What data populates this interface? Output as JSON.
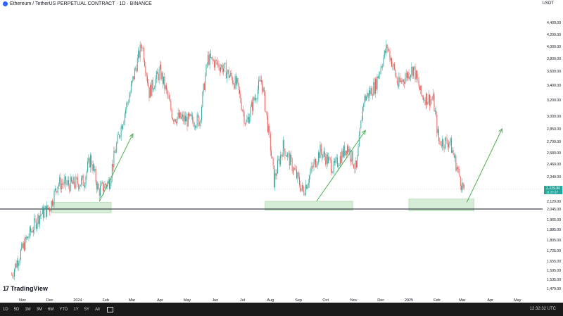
{
  "header": {
    "title": "Ethereum / TetherUS PERPETUAL CONTRACT · 1D · BINANCE",
    "currency": "USDT"
  },
  "logo": {
    "mark": "17",
    "text": "TradingView"
  },
  "bottombar": {
    "timeframes": [
      "1D",
      "5D",
      "1M",
      "3M",
      "6M",
      "YTD",
      "1Y",
      "5Y",
      "All"
    ],
    "clock": "12:32:32 UTC"
  },
  "price_label": {
    "value": "2,229.80",
    "countdown": "11:27:27"
  },
  "colors": {
    "up": "#26a69a",
    "down": "#ef5350",
    "support": "#131722",
    "zone": "#c8e6c9",
    "arrow": "#4caf50"
  },
  "chart_data": {
    "type": "candlestick",
    "title": "Ethereum / TetherUS PERPETUAL CONTRACT · 1D · BINANCE",
    "y_ticks": [
      "4,400.00",
      "4,200.00",
      "4,000.00",
      "3,800.00",
      "3,600.00",
      "3,400.00",
      "3,200.00",
      "3,000.00",
      "2,850.00",
      "2,700.00",
      "2,580.00",
      "2,460.00",
      "2,340.00",
      "2,120.00",
      "2,045.00",
      "1,965.00",
      "1,885.00",
      "1,805.00",
      "1,725.00",
      "1,655.00",
      "1,595.00",
      "1,535.00",
      "1,479.00"
    ],
    "x_ticks": [
      "Nov",
      "Dec",
      "2024",
      "Feb",
      "Mar",
      "Apr",
      "May",
      "Jun",
      "Jul",
      "Aug",
      "Sep",
      "Oct",
      "Nov",
      "Dec",
      "2025",
      "Feb",
      "Mar",
      "Apr",
      "May"
    ],
    "close_path": [
      [
        "2023-10-20",
        1565
      ],
      [
        "2023-11-05",
        1800
      ],
      [
        "2023-11-20",
        2000
      ],
      [
        "2023-12-01",
        2060
      ],
      [
        "2023-12-10",
        2280
      ],
      [
        "2023-12-25",
        2270
      ],
      [
        "2024-01-08",
        2300
      ],
      [
        "2024-01-15",
        2520
      ],
      [
        "2024-01-24",
        2210
      ],
      [
        "2024-02-05",
        2300
      ],
      [
        "2024-02-15",
        2750
      ],
      [
        "2024-02-28",
        3300
      ],
      [
        "2024-03-12",
        4050
      ],
      [
        "2024-03-20",
        3300
      ],
      [
        "2024-04-01",
        3600
      ],
      [
        "2024-04-15",
        3000
      ],
      [
        "2024-05-01",
        2950
      ],
      [
        "2024-05-15",
        2950
      ],
      [
        "2024-05-24",
        3800
      ],
      [
        "2024-06-10",
        3650
      ],
      [
        "2024-06-25",
        3400
      ],
      [
        "2024-07-05",
        2900
      ],
      [
        "2024-07-22",
        3480
      ],
      [
        "2024-08-05",
        2300
      ],
      [
        "2024-08-15",
        2650
      ],
      [
        "2024-09-06",
        2200
      ],
      [
        "2024-09-25",
        2600
      ],
      [
        "2024-10-10",
        2420
      ],
      [
        "2024-10-25",
        2650
      ],
      [
        "2024-11-04",
        2400
      ],
      [
        "2024-11-12",
        3200
      ],
      [
        "2024-11-25",
        3400
      ],
      [
        "2024-12-08",
        4000
      ],
      [
        "2024-12-20",
        3400
      ],
      [
        "2025-01-06",
        3650
      ],
      [
        "2025-01-15",
        3250
      ],
      [
        "2025-01-28",
        3200
      ],
      [
        "2025-02-03",
        2700
      ],
      [
        "2025-02-15",
        2700
      ],
      [
        "2025-02-24",
        2400
      ],
      [
        "2025-03-03",
        2200
      ]
    ],
    "support_level": 2045,
    "zones": [
      {
        "from": "2023-12-03",
        "to": "2024-02-07",
        "low": 2015,
        "high": 2110
      },
      {
        "from": "2024-07-26",
        "to": "2024-10-31",
        "low": 2035,
        "high": 2120
      },
      {
        "from": "2025-01-01",
        "to": "2025-03-14",
        "low": 2030,
        "high": 2140
      }
    ],
    "arrows": [
      {
        "from": [
          "2024-01-25",
          2120
        ],
        "to": [
          "2024-03-02",
          2790
        ]
      },
      {
        "from": [
          "2024-09-21",
          2120
        ],
        "to": [
          "2024-11-14",
          2830
        ]
      },
      {
        "from": [
          "2025-03-06",
          2110
        ],
        "to": [
          "2025-04-14",
          2850
        ]
      }
    ],
    "last_price": 2229.8
  }
}
